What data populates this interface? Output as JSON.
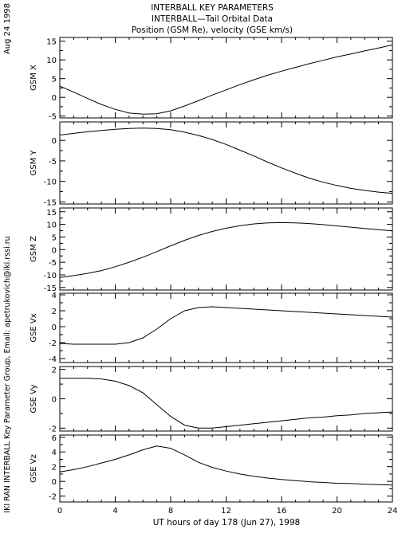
{
  "header": {
    "title": "INTERBALL KEY PARAMETERS",
    "subtitle": "INTERBALL—Tail Orbital Data",
    "subtitle2": "Position (GSM Re), velocity (GSE km/s)"
  },
  "side": {
    "date": "Aug 24 1998",
    "credit": "IKI RAN INTERBALL Key Parameter Group, Email: apetrukovich@iki.rssi.ru"
  },
  "colors": {
    "line": "#000000",
    "frame": "#000000",
    "background": "#ffffff"
  },
  "chart_data": {
    "type": "line",
    "xlabel": "UT hours of day 178 (Jun 27), 1998",
    "xlim": [
      0,
      24
    ],
    "xticks": [
      0,
      4,
      8,
      12,
      16,
      20,
      24
    ],
    "xtick_labels": [
      "0",
      "4",
      "8",
      "12",
      "16",
      "20",
      "24"
    ],
    "x": [
      0,
      1,
      2,
      3,
      4,
      5,
      6,
      7,
      8,
      9,
      10,
      11,
      12,
      13,
      14,
      15,
      16,
      17,
      18,
      19,
      20,
      21,
      22,
      23,
      24
    ],
    "panels": [
      {
        "ylabel": "GSM X",
        "ylim": [
          -5.5,
          16
        ],
        "yticks": [
          -5,
          0,
          5,
          10,
          15
        ],
        "ytick_labels": [
          "-5",
          "0",
          "5",
          "10",
          "15"
        ],
        "values": [
          3.0,
          1.4,
          -0.3,
          -1.9,
          -3.2,
          -4.2,
          -4.5,
          -4.4,
          -3.6,
          -2.3,
          -0.9,
          0.6,
          2.0,
          3.4,
          4.7,
          5.9,
          7.0,
          8.0,
          9.0,
          9.9,
          10.8,
          11.6,
          12.4,
          13.2,
          14.0
        ]
      },
      {
        "ylabel": "GSM Y",
        "ylim": [
          -15.5,
          4.5
        ],
        "yticks": [
          -15,
          -10,
          -5,
          0
        ],
        "ytick_labels": [
          "-15",
          "-10",
          "-5",
          "0"
        ],
        "values": [
          1.3,
          1.7,
          2.1,
          2.4,
          2.7,
          2.9,
          3.0,
          2.9,
          2.6,
          2.0,
          1.2,
          0.2,
          -1.0,
          -2.4,
          -3.8,
          -5.3,
          -6.7,
          -8.0,
          -9.2,
          -10.2,
          -11.0,
          -11.7,
          -12.2,
          -12.6,
          -12.9
        ]
      },
      {
        "ylabel": "GSM Z",
        "ylim": [
          -16,
          16.5
        ],
        "yticks": [
          -15,
          -10,
          -5,
          0,
          5,
          10,
          15
        ],
        "ytick_labels": [
          "-15",
          "-10",
          "-5",
          "0",
          "5",
          "10",
          "15"
        ],
        "values": [
          -11.0,
          -10.3,
          -9.4,
          -8.3,
          -6.8,
          -5.0,
          -3.0,
          -0.8,
          1.5,
          3.7,
          5.6,
          7.2,
          8.5,
          9.5,
          10.2,
          10.6,
          10.7,
          10.6,
          10.3,
          9.9,
          9.4,
          8.9,
          8.4,
          7.9,
          7.4
        ]
      },
      {
        "ylabel": "GSE Vx",
        "ylim": [
          -4.5,
          4.2
        ],
        "yticks": [
          -4,
          -2,
          0,
          2,
          4
        ],
        "ytick_labels": [
          "-4",
          "-2",
          "0",
          "2",
          "4"
        ],
        "values": [
          -2.1,
          -2.2,
          -2.2,
          -2.2,
          -2.2,
          -2.0,
          -1.4,
          -0.3,
          1.0,
          2.0,
          2.4,
          2.5,
          2.4,
          2.3,
          2.2,
          2.1,
          2.0,
          1.9,
          1.8,
          1.7,
          1.6,
          1.5,
          1.4,
          1.3,
          1.2
        ]
      },
      {
        "ylabel": "GSE Vy",
        "ylim": [
          -2.2,
          2.2
        ],
        "yticks": [
          -2,
          0,
          2
        ],
        "ytick_labels": [
          "-2",
          "0",
          "2"
        ],
        "values": [
          1.4,
          1.4,
          1.4,
          1.35,
          1.2,
          0.9,
          0.4,
          -0.4,
          -1.2,
          -1.8,
          -2.0,
          -2.0,
          -1.9,
          -1.8,
          -1.7,
          -1.6,
          -1.5,
          -1.4,
          -1.3,
          -1.25,
          -1.15,
          -1.1,
          -1.0,
          -0.95,
          -0.9
        ]
      },
      {
        "ylabel": "GSE Vz",
        "ylim": [
          -2.8,
          6.3
        ],
        "yticks": [
          -2,
          0,
          2,
          4,
          6
        ],
        "ytick_labels": [
          "-2",
          "0",
          "2",
          "4",
          "6"
        ],
        "values": [
          1.3,
          1.6,
          2.0,
          2.5,
          3.0,
          3.6,
          4.3,
          4.8,
          4.5,
          3.6,
          2.6,
          1.9,
          1.4,
          1.0,
          0.7,
          0.45,
          0.25,
          0.1,
          -0.05,
          -0.15,
          -0.25,
          -0.3,
          -0.4,
          -0.45,
          -0.5
        ]
      }
    ]
  }
}
